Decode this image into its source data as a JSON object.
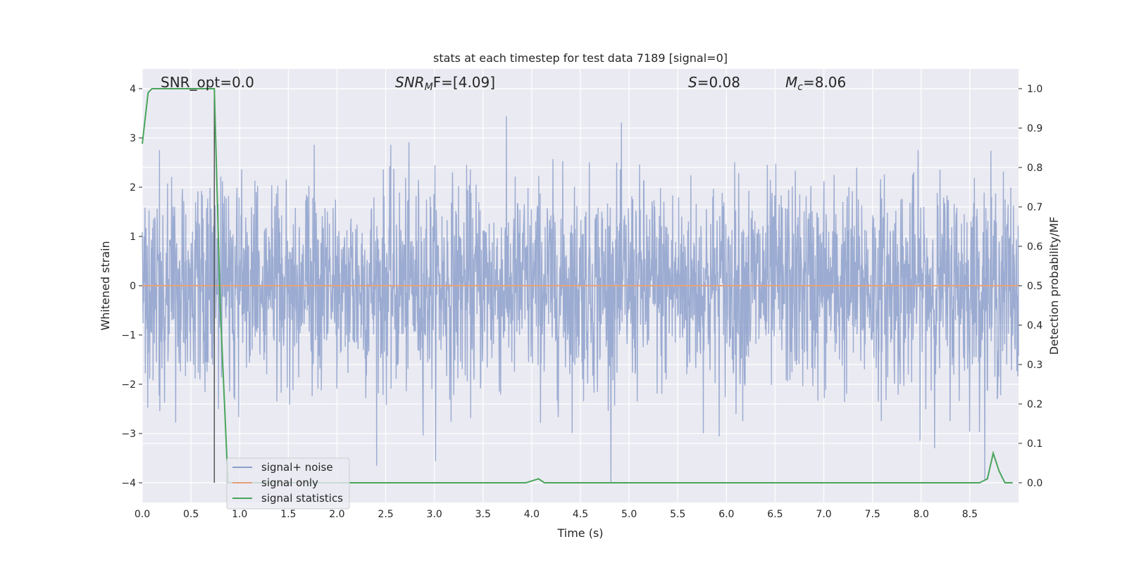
{
  "chart_data": {
    "type": "line",
    "title": "stats at each timestep for test data 7189 [signal=0]",
    "xlabel": "Time (s)",
    "ylabel_left": "Whitened strain",
    "ylabel_right": "Detection probability/MF",
    "xlim": [
      0.0,
      9.0
    ],
    "ylim_left": [
      -4.4,
      4.4
    ],
    "ylim_right": [
      -0.05,
      1.05
    ],
    "xticks": [
      "0.0",
      "0.5",
      "1.0",
      "1.5",
      "2.0",
      "2.5",
      "3.0",
      "3.5",
      "4.0",
      "4.5",
      "5.0",
      "5.5",
      "6.0",
      "6.5",
      "7.0",
      "7.5",
      "8.0",
      "8.5"
    ],
    "yticks_left": [
      "4",
      "3",
      "2",
      "1",
      "0",
      "−1",
      "−2",
      "−3",
      "−4"
    ],
    "yticks_right": [
      "1.0",
      "0.9",
      "0.8",
      "0.7",
      "0.6",
      "0.5",
      "0.4",
      "0.3",
      "0.2",
      "0.1",
      "0.0"
    ],
    "grid": true,
    "legend_position": "bottom-left",
    "annotations": {
      "snr_opt": "SNR_opt=0.0",
      "snr_mf_label": "SNR",
      "snr_mf_sub": "M",
      "snr_mf_rest": "F=[4.09]",
      "s_label": "S",
      "s_value": "=0.08",
      "mc_label": "M",
      "mc_sub": "c",
      "mc_value": "=8.06"
    },
    "series": [
      {
        "name": "signal+ noise",
        "color": "#8da0cb",
        "axis": "left",
        "description": "whitened noise-like strain, approx. amplitude within ±4"
      },
      {
        "name": "signal only",
        "color": "#e5a27c",
        "axis": "left",
        "x": [
          0.0,
          9.0
        ],
        "values": [
          0.0,
          0.0
        ]
      },
      {
        "name": "signal statistics",
        "color": "#4aa55b",
        "axis": "right",
        "x": [
          0.0,
          0.06,
          0.1,
          0.2,
          0.3,
          0.4,
          0.5,
          0.6,
          0.7,
          0.74,
          0.8,
          0.88,
          0.95,
          1.0,
          2.0,
          3.0,
          3.94,
          4.07,
          4.13,
          5.0,
          6.0,
          7.0,
          8.0,
          8.6,
          8.68,
          8.74,
          8.8,
          8.86,
          8.94
        ],
        "values": [
          0.86,
          0.99,
          1.0,
          1.0,
          1.0,
          1.0,
          1.0,
          1.0,
          1.0,
          1.0,
          0.45,
          0.0,
          0.0,
          0.0,
          0.0,
          0.0,
          0.0,
          0.01,
          0.0,
          0.0,
          0.0,
          0.0,
          0.0,
          0.0,
          0.01,
          0.075,
          0.03,
          0.0,
          0.0
        ]
      }
    ],
    "vline": {
      "x": 0.74,
      "ymin": -4.0,
      "ymax": 4.0,
      "color": "#555555"
    }
  },
  "colors": {
    "axes_bg": "#eaeaf2",
    "grid": "#ffffff",
    "noise": "#8da0cb",
    "signal": "#e5a27c",
    "stat": "#4aa55b"
  }
}
